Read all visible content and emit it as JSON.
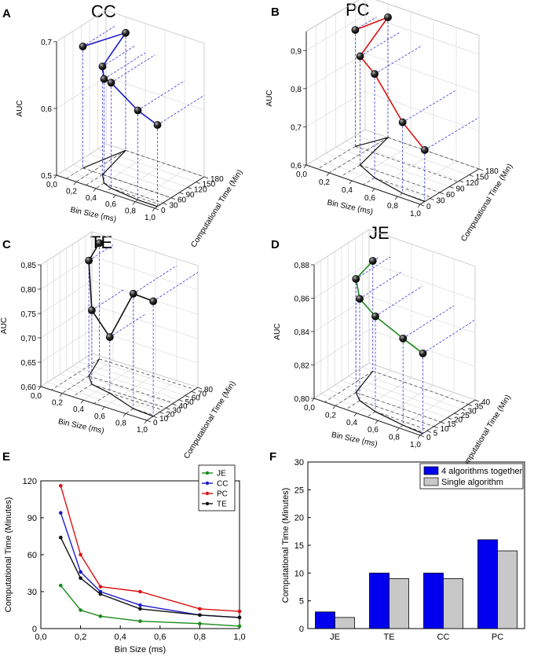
{
  "chart_data": [
    {
      "panel": "A",
      "type": "line3d",
      "title": "CC",
      "xlabel": "Bin Size (ms)",
      "ylabel": "Computational Time (Min)",
      "zlabel": "AUC",
      "x_ticks": [
        "0,0",
        "0,2",
        "0,4",
        "0,6",
        "0,8",
        "1,0"
      ],
      "y_ticks": [
        "0",
        "30",
        "60",
        "90",
        "120",
        "150",
        "180"
      ],
      "z_ticks": [
        "0,5",
        "0,6",
        "0,7"
      ],
      "xlim": [
        0,
        1
      ],
      "ylim": [
        0,
        180
      ],
      "zlim": [
        0.5,
        0.7
      ],
      "color": "#1a1acc",
      "bin": [
        0.1,
        0.2,
        0.3,
        0.4,
        0.5,
        0.8,
        1.0
      ],
      "time": [
        60,
        180,
        60,
        30,
        20,
        10,
        10
      ],
      "auc": [
        0.682,
        0.676,
        0.662,
        0.656,
        0.658,
        0.634,
        0.622
      ]
    },
    {
      "panel": "B",
      "type": "line3d",
      "title": "PC",
      "xlabel": "Bin Size (ms)",
      "ylabel": "Computational Time (Min)",
      "zlabel": "AUC",
      "x_ticks": [
        "0,0",
        "0,2",
        "0,4",
        "0,6",
        "0,8",
        "1,0"
      ],
      "y_ticks": [
        "0",
        "30",
        "60",
        "90",
        "120",
        "150",
        "180"
      ],
      "z_ticks": [
        "0,6",
        "0,7",
        "0,8",
        "0,9"
      ],
      "xlim": [
        0,
        1
      ],
      "ylim": [
        0,
        180
      ],
      "zlim": [
        0.6,
        0.95
      ],
      "color": "#dd1111",
      "bin": [
        0.1,
        0.2,
        0.3,
        0.5,
        0.8,
        1.0
      ],
      "time": [
        115,
        180,
        60,
        35,
        16,
        14
      ],
      "auc": [
        0.905,
        0.915,
        0.885,
        0.872,
        0.786,
        0.735
      ]
    },
    {
      "panel": "C",
      "type": "line3d",
      "title": "TE",
      "xlabel": "Bin Size (ms)",
      "ylabel": "Computational Time (Min)",
      "zlabel": "AUC",
      "x_ticks": [
        "0,0",
        "0,2",
        "0,4",
        "0,6",
        "0,8",
        "1,0"
      ],
      "y_ticks": [
        "0",
        "10",
        "20",
        "30",
        "40",
        "50",
        "60",
        "70",
        "80"
      ],
      "z_ticks": [
        "0,60",
        "0,65",
        "0,70",
        "0,75",
        "0,80",
        "0,85"
      ],
      "xlim": [
        0,
        1
      ],
      "ylim": [
        0,
        80
      ],
      "zlim": [
        0.6,
        0.85
      ],
      "color": "#111111",
      "bin": [
        0.1,
        0.2,
        0.3,
        0.5,
        0.8,
        1.0
      ],
      "time": [
        75,
        42,
        30,
        25,
        12,
        10
      ],
      "auc": [
        0.838,
        0.837,
        0.752,
        0.715,
        0.836,
        0.836
      ]
    },
    {
      "panel": "D",
      "type": "line3d",
      "title": "JE",
      "xlabel": "Bin Size (ms)",
      "ylabel": "Computational Time (Min)",
      "zlabel": "AUC",
      "x_ticks": [
        "0,0",
        "0,2",
        "0,4",
        "0,6",
        "0,8",
        "1,0"
      ],
      "y_ticks": [
        "0",
        "5",
        "10",
        "15",
        "20",
        "25",
        "30",
        "35",
        "40"
      ],
      "z_ticks": [
        "0,80",
        "0,82",
        "0,84",
        "0,86",
        "0,88"
      ],
      "xlim": [
        0,
        1
      ],
      "ylim": [
        0,
        40
      ],
      "zlim": [
        0.8,
        0.88
      ],
      "color": "#1a8a1a",
      "bin": [
        0.1,
        0.2,
        0.3,
        0.5,
        0.8,
        1.0
      ],
      "time": [
        35,
        15,
        10,
        6,
        3,
        2
      ],
      "auc": [
        0.866,
        0.868,
        0.861,
        0.857,
        0.852,
        0.848
      ]
    },
    {
      "panel": "E",
      "type": "line",
      "xlabel": "Bin Size (ms)",
      "ylabel": "Computational Time (Minutes)",
      "xlim": [
        0,
        1
      ],
      "ylim": [
        0,
        120
      ],
      "x_ticks": [
        "0,0",
        "0,2",
        "0,4",
        "0,6",
        "0,8",
        "1,0"
      ],
      "y_ticks": [
        "0",
        "30",
        "60",
        "90",
        "120"
      ],
      "x": [
        0.1,
        0.2,
        0.3,
        0.5,
        0.8,
        1.0
      ],
      "series": [
        {
          "name": "JE",
          "color": "#1a8a1a",
          "values": [
            35,
            15,
            10,
            6,
            4,
            2
          ]
        },
        {
          "name": "CC",
          "color": "#1a1acc",
          "values": [
            94,
            46,
            30,
            19,
            11,
            9
          ]
        },
        {
          "name": "PC",
          "color": "#dd1111",
          "values": [
            116,
            60,
            34,
            30,
            16,
            14
          ]
        },
        {
          "name": "TE",
          "color": "#111111",
          "values": [
            74,
            41,
            28,
            16,
            11,
            9
          ]
        }
      ],
      "legend": "top-right"
    },
    {
      "panel": "F",
      "type": "bar",
      "ylabel": "Computational Time (Minutes)",
      "ylim": [
        0,
        30
      ],
      "y_ticks": [
        "0",
        "5",
        "10",
        "15",
        "20",
        "25",
        "30"
      ],
      "categories": [
        "JE",
        "TE",
        "CC",
        "PC"
      ],
      "series": [
        {
          "name": "4 algorithms together",
          "color": "#0000ee",
          "values": [
            3,
            10,
            10,
            16
          ]
        },
        {
          "name": "Single algorithm",
          "color": "#c8c8c8",
          "values": [
            2,
            9,
            9,
            14
          ]
        }
      ],
      "legend": "top-right"
    }
  ]
}
